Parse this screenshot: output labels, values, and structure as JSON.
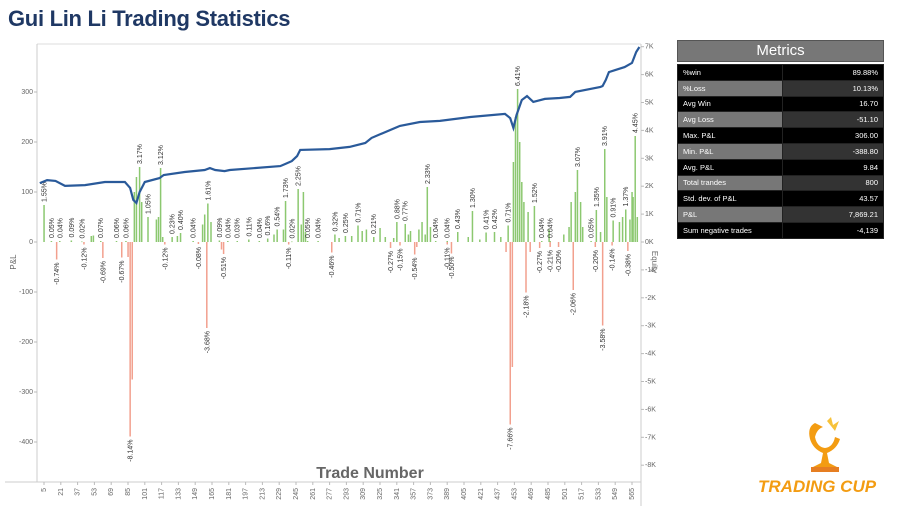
{
  "title": "Gui Lin Li Trading Statistics",
  "metrics": {
    "title": "Metrics",
    "rows": [
      {
        "label": "%win",
        "value": "89.88%"
      },
      {
        "label": "%Loss",
        "value": "10.13%"
      },
      {
        "label": "Avg Win",
        "value": "16.70"
      },
      {
        "label": "Avg Loss",
        "value": "-51.10"
      },
      {
        "label": "Max. P&L",
        "value": "306.00"
      },
      {
        "label": "Min. P&L",
        "value": "-388.80"
      },
      {
        "label": "Avg. P&L",
        "value": "9.84"
      },
      {
        "label": "Total trandes",
        "value": "800"
      },
      {
        "label": "Std. dev. of P&L",
        "value": "43.57"
      },
      {
        "label": "P&L",
        "value": "7,869.21"
      },
      {
        "label": "Sum negative trades",
        "value": "-4,139"
      }
    ]
  },
  "logo": {
    "text": "TRADING CUP",
    "icon": "trophy-icon",
    "color": "#f39c12"
  },
  "chart_data": {
    "type": "bar+line",
    "xlabel": "Trade Number",
    "ylabel": "P&L",
    "y2label": "Equity",
    "ylim": [
      -470,
      395
    ],
    "y2lim": [
      -8600,
      7000
    ],
    "yticks": [
      300,
      200,
      100,
      0,
      -100,
      -200,
      -300,
      -400
    ],
    "y2ticks": [
      "7K",
      "6K",
      "5K",
      "4K",
      "3K",
      "2K",
      "1K",
      "0K",
      "-1K",
      "-2K",
      "-3K",
      "-4K",
      "-5K",
      "-6K",
      "-7K",
      "-8K"
    ],
    "xticks": [
      5,
      21,
      37,
      53,
      69,
      85,
      101,
      117,
      133,
      149,
      165,
      181,
      197,
      213,
      229,
      245,
      261,
      277,
      293,
      309,
      325,
      341,
      357,
      373,
      389,
      405,
      421,
      437,
      453,
      469,
      485,
      501,
      517,
      533,
      549,
      565
    ],
    "colors": {
      "positive": "#8cc870",
      "negative": "#f2a08e",
      "equity": "#2a5a9a"
    },
    "bars": [
      [
        5,
        74,
        "1.55%"
      ],
      [
        12,
        2,
        "0.05%"
      ],
      [
        17,
        -35,
        "-0.74%"
      ],
      [
        20,
        2,
        "0.04%"
      ],
      [
        31,
        3,
        "0.09%"
      ],
      [
        41,
        1,
        "0.02%"
      ],
      [
        43,
        -5,
        "-0.12%"
      ],
      [
        50,
        12,
        ""
      ],
      [
        52,
        13,
        ""
      ],
      [
        59,
        2,
        "0.07%"
      ],
      [
        61,
        -32,
        "-0.69%"
      ],
      [
        74,
        2,
        "0.06%"
      ],
      [
        79,
        -31,
        "-0.67%"
      ],
      [
        83,
        2,
        "0.06%"
      ],
      [
        85,
        -30,
        ""
      ],
      [
        87,
        -389,
        "-8.14%"
      ],
      [
        89,
        -275,
        ""
      ],
      [
        91,
        100,
        ""
      ],
      [
        93,
        130,
        ""
      ],
      [
        96,
        150,
        "3.17%"
      ],
      [
        98,
        80,
        ""
      ],
      [
        104,
        50,
        "1.05%"
      ],
      [
        112,
        45,
        ""
      ],
      [
        114,
        50,
        ""
      ],
      [
        116,
        148,
        "3.12%"
      ],
      [
        118,
        10,
        ""
      ],
      [
        120,
        -5,
        "-0.12%"
      ],
      [
        127,
        10,
        "0.23%"
      ],
      [
        132,
        12,
        ""
      ],
      [
        135,
        18,
        "0.40%"
      ],
      [
        147,
        2,
        "0.04%"
      ],
      [
        152,
        -4,
        "-0.08%"
      ],
      [
        156,
        35,
        ""
      ],
      [
        158,
        55,
        ""
      ],
      [
        160,
        -172,
        "-3.68%"
      ],
      [
        161,
        77,
        "1.61%"
      ],
      [
        164,
        40,
        ""
      ],
      [
        172,
        3,
        "0.09%"
      ],
      [
        174,
        -15,
        ""
      ],
      [
        176,
        -24,
        "-0.51%"
      ],
      [
        180,
        2,
        "0.04%"
      ],
      [
        189,
        2,
        "0.03%"
      ],
      [
        200,
        5,
        "0.11%"
      ],
      [
        210,
        2,
        "0.04%"
      ],
      [
        218,
        7,
        "0.16%"
      ],
      [
        224,
        15,
        ""
      ],
      [
        227,
        25,
        "0.54%"
      ],
      [
        233,
        25,
        ""
      ],
      [
        235,
        82,
        "1.73%"
      ],
      [
        238,
        -5,
        "-0.11%"
      ],
      [
        241,
        1,
        "0.02%"
      ],
      [
        247,
        106,
        "2.25%"
      ],
      [
        250,
        35,
        ""
      ],
      [
        252,
        100,
        ""
      ],
      [
        254,
        20,
        ""
      ],
      [
        256,
        2,
        "0.05%"
      ],
      [
        266,
        2,
        "0.04%"
      ],
      [
        279,
        -21,
        "-0.46%"
      ],
      [
        282,
        15,
        "0.32%"
      ],
      [
        286,
        8,
        ""
      ],
      [
        292,
        12,
        "0.25%"
      ],
      [
        298,
        12,
        ""
      ],
      [
        304,
        33,
        "0.71%"
      ],
      [
        308,
        22,
        ""
      ],
      [
        312,
        25,
        ""
      ],
      [
        319,
        10,
        "0.21%"
      ],
      [
        325,
        28,
        ""
      ],
      [
        330,
        10,
        ""
      ],
      [
        335,
        -12,
        "-0.27%"
      ],
      [
        338,
        8,
        ""
      ],
      [
        341,
        40,
        "0.88%"
      ],
      [
        344,
        -7,
        "-0.15%"
      ],
      [
        349,
        36,
        "0.77%"
      ],
      [
        352,
        15,
        ""
      ],
      [
        354,
        22,
        ""
      ],
      [
        358,
        -25,
        "-0.54%"
      ],
      [
        360,
        -10,
        ""
      ],
      [
        362,
        25,
        ""
      ],
      [
        365,
        40,
        ""
      ],
      [
        368,
        15,
        ""
      ],
      [
        370,
        110,
        "2.33%"
      ],
      [
        373,
        30,
        ""
      ],
      [
        378,
        2,
        "0.04%"
      ],
      [
        389,
        -5,
        "-0.11%"
      ],
      [
        389,
        2,
        "0.04%"
      ],
      [
        393,
        -23,
        "-0.50%"
      ],
      [
        399,
        20,
        "0.43%"
      ],
      [
        409,
        10,
        ""
      ],
      [
        413,
        62,
        "1.30%"
      ],
      [
        420,
        5,
        ""
      ],
      [
        426,
        19,
        "0.41%"
      ],
      [
        434,
        20,
        "0.42%"
      ],
      [
        440,
        10,
        ""
      ],
      [
        445,
        -20,
        ""
      ],
      [
        447,
        33,
        "0.71%"
      ],
      [
        449,
        -365,
        "-7.66%"
      ],
      [
        451,
        -250,
        ""
      ],
      [
        452,
        160,
        ""
      ],
      [
        454,
        250,
        ""
      ],
      [
        456,
        306,
        "6.41%"
      ],
      [
        458,
        200,
        ""
      ],
      [
        460,
        120,
        ""
      ],
      [
        462,
        80,
        ""
      ],
      [
        464,
        -101,
        "-2.18%"
      ],
      [
        466,
        60,
        ""
      ],
      [
        468,
        -20,
        ""
      ],
      [
        472,
        72,
        "1.52%"
      ],
      [
        477,
        -12,
        "-0.27%"
      ],
      [
        479,
        2,
        "0.04%"
      ],
      [
        486,
        25,
        ""
      ],
      [
        487,
        -10,
        "-0.21%"
      ],
      [
        487,
        2,
        "0.04%"
      ],
      [
        495,
        -10,
        "-0.20%"
      ],
      [
        500,
        15,
        ""
      ],
      [
        505,
        30,
        ""
      ],
      [
        507,
        80,
        ""
      ],
      [
        509,
        -96,
        "-2.06%"
      ],
      [
        511,
        100,
        ""
      ],
      [
        513,
        144,
        "3.07%"
      ],
      [
        516,
        80,
        ""
      ],
      [
        518,
        30,
        ""
      ],
      [
        526,
        2,
        "0.05%"
      ],
      [
        530,
        -10,
        "-0.20%"
      ],
      [
        531,
        64,
        "1.35%"
      ],
      [
        535,
        20,
        ""
      ],
      [
        537,
        -167,
        "-3.58%"
      ],
      [
        539,
        186,
        "3.91%"
      ],
      [
        541,
        90,
        ""
      ],
      [
        546,
        -7,
        "-0.14%"
      ],
      [
        547,
        43,
        "0.91%"
      ],
      [
        553,
        40,
        ""
      ],
      [
        556,
        50,
        ""
      ],
      [
        559,
        65,
        "1.37%"
      ],
      [
        561,
        -18,
        "-0.38%"
      ],
      [
        563,
        45,
        ""
      ],
      [
        565,
        100,
        ""
      ],
      [
        566,
        90,
        ""
      ],
      [
        568,
        212,
        "4.45%"
      ],
      [
        570,
        50,
        ""
      ]
    ],
    "equity": [
      [
        1,
        2110
      ],
      [
        8,
        2220
      ],
      [
        16,
        2190
      ],
      [
        25,
        2010
      ],
      [
        44,
        2040
      ],
      [
        63,
        2150
      ],
      [
        82,
        2150
      ],
      [
        87,
        1940
      ],
      [
        90,
        1510
      ],
      [
        93,
        1400
      ],
      [
        96,
        1790
      ],
      [
        101,
        2150
      ],
      [
        115,
        2290
      ],
      [
        119,
        2400
      ],
      [
        139,
        2510
      ],
      [
        158,
        2580
      ],
      [
        163,
        2650
      ],
      [
        168,
        2580
      ],
      [
        177,
        2540
      ],
      [
        182,
        2580
      ],
      [
        230,
        2720
      ],
      [
        235,
        2800
      ],
      [
        241,
        2900
      ],
      [
        246,
        3080
      ],
      [
        249,
        3300
      ],
      [
        277,
        3330
      ],
      [
        296,
        3410
      ],
      [
        311,
        3550
      ],
      [
        317,
        3730
      ],
      [
        344,
        4160
      ],
      [
        363,
        4300
      ],
      [
        382,
        4340
      ],
      [
        411,
        4480
      ],
      [
        444,
        4590
      ],
      [
        449,
        4440
      ],
      [
        452,
        4090
      ],
      [
        455,
        4550
      ],
      [
        460,
        5090
      ],
      [
        465,
        5230
      ],
      [
        471,
        5020
      ],
      [
        482,
        5130
      ],
      [
        496,
        5160
      ],
      [
        506,
        5200
      ],
      [
        511,
        5380
      ],
      [
        535,
        5560
      ],
      [
        537,
        5590
      ],
      [
        540,
        5810
      ],
      [
        543,
        6090
      ],
      [
        549,
        6160
      ],
      [
        558,
        6270
      ],
      [
        565,
        6420
      ],
      [
        569,
        6810
      ],
      [
        572,
        6990
      ]
    ]
  }
}
